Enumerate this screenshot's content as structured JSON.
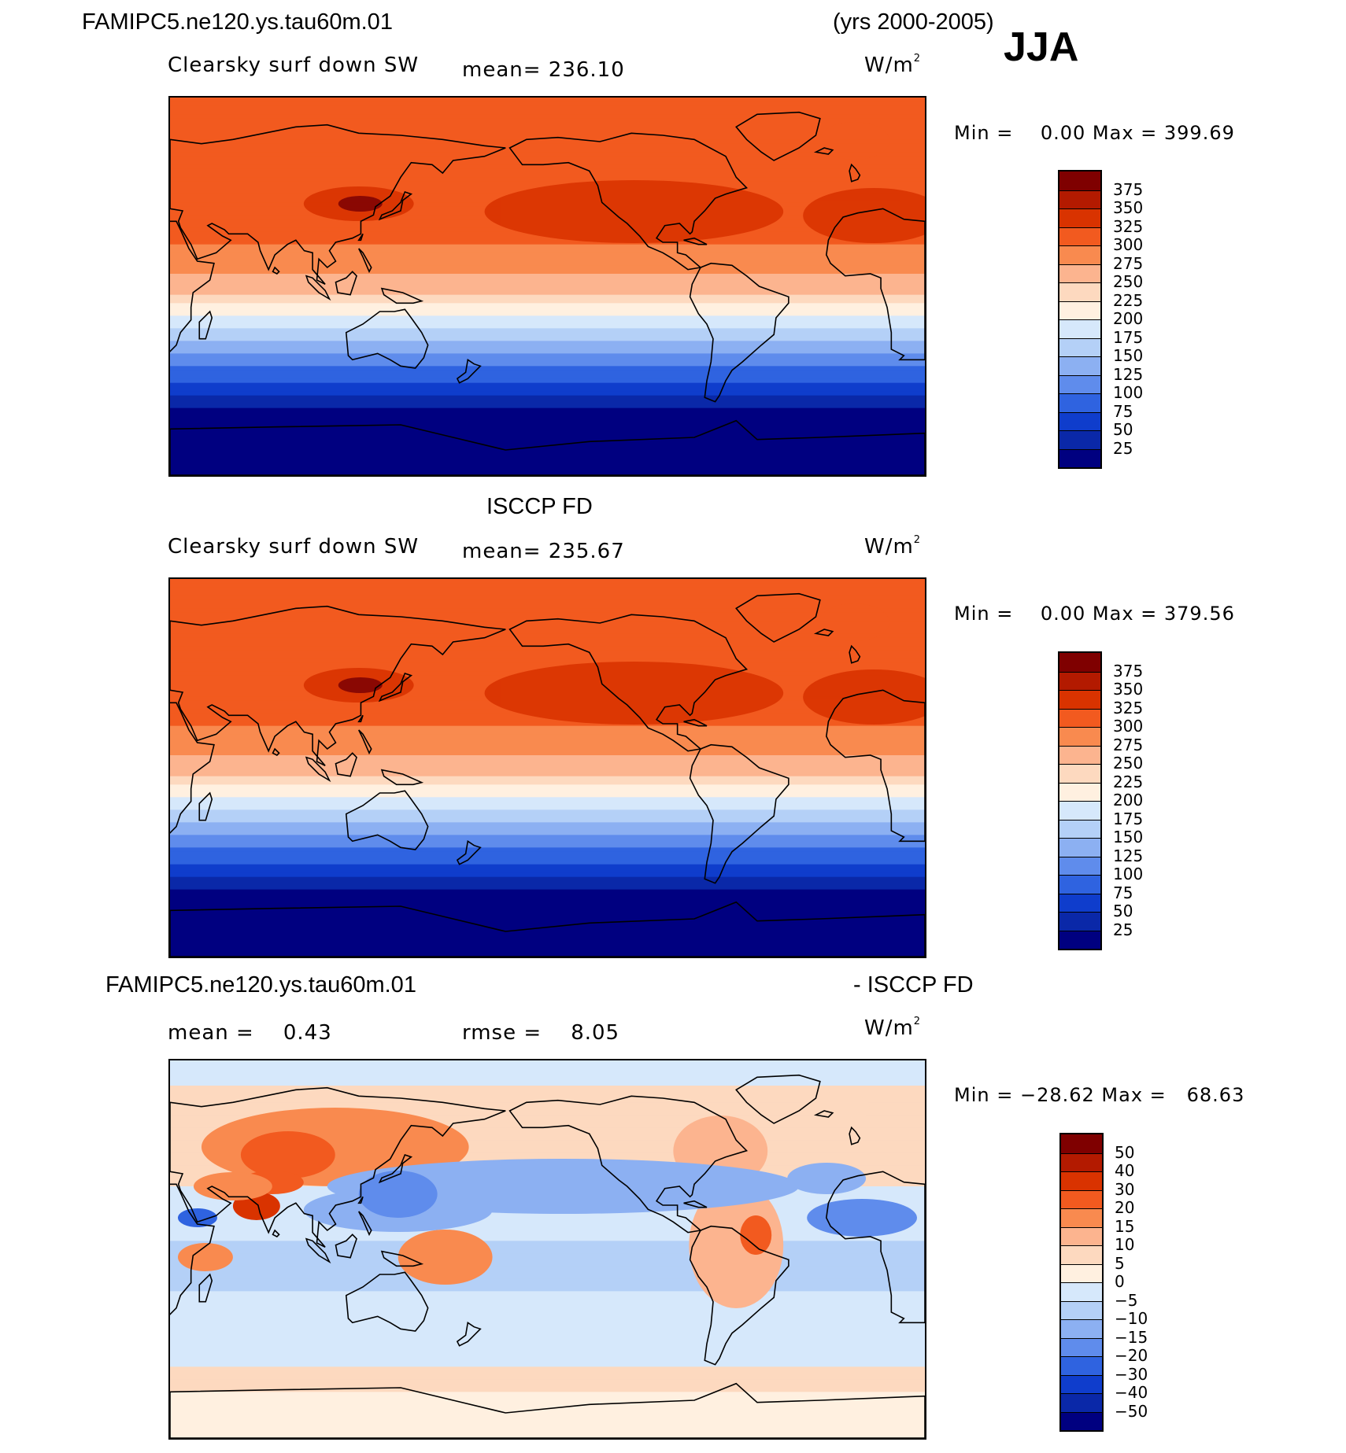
{
  "header": {
    "case_title": "FAMIPC5.ne120.ys.tau60m.01",
    "years": "(yrs 2000-2005)",
    "season": "JJA"
  },
  "panels": [
    {
      "title": "",
      "variable": "Clearsky surf down SW",
      "mean_text": "mean= 236.10",
      "units_base": "W/m",
      "units_exp": "2",
      "minmax": "Min =    0.00 Max = 399.69",
      "colorbar": {
        "labels": [
          "375",
          "350",
          "325",
          "300",
          "275",
          "250",
          "225",
          "200",
          "175",
          "150",
          "125",
          "100",
          "75",
          "50",
          "25"
        ],
        "colors": [
          "#7f0000",
          "#b31a00",
          "#d93300",
          "#f25a1f",
          "#f98a4f",
          "#fcb48f",
          "#fdd9bf",
          "#fff0e0",
          "#d6e8fb",
          "#b4d0f7",
          "#8cb0f2",
          "#5f8cec",
          "#2f63e0",
          "#0f3dcc",
          "#0a28a8",
          "#000080"
        ]
      },
      "fields": {
        "ocean_bands": "model",
        "land": "model"
      }
    },
    {
      "title": "ISCCP FD",
      "variable": "Clearsky surf down SW",
      "mean_text": "mean= 235.67",
      "units_base": "W/m",
      "units_exp": "2",
      "minmax": "Min =    0.00 Max = 379.56",
      "colorbar": {
        "labels": [
          "375",
          "350",
          "325",
          "300",
          "275",
          "250",
          "225",
          "200",
          "175",
          "150",
          "125",
          "100",
          "75",
          "50",
          "25"
        ],
        "colors": [
          "#7f0000",
          "#b31a00",
          "#d93300",
          "#f25a1f",
          "#f98a4f",
          "#fcb48f",
          "#fdd9bf",
          "#fff0e0",
          "#d6e8fb",
          "#b4d0f7",
          "#8cb0f2",
          "#5f8cec",
          "#2f63e0",
          "#0f3dcc",
          "#0a28a8",
          "#000080"
        ]
      },
      "fields": {
        "ocean_bands": "obs",
        "land": "obs"
      }
    },
    {
      "title_left": "FAMIPC5.ne120.ys.tau60m.01",
      "title_right": "- ISCCP FD",
      "mean_text": "mean =    0.43",
      "rmse_text": "rmse =    8.05",
      "units_base": "W/m",
      "units_exp": "2",
      "minmax": "Min = −28.62 Max =   68.63",
      "colorbar": {
        "labels": [
          "50",
          "40",
          "30",
          "20",
          "15",
          "10",
          "5",
          "0",
          "−5",
          "−10",
          "−15",
          "−20",
          "−30",
          "−40",
          "−50"
        ],
        "colors": [
          "#7f0000",
          "#b31a00",
          "#d93300",
          "#f25a1f",
          "#f98a4f",
          "#fcb48f",
          "#fdd9bf",
          "#fff0e0",
          "#d6e8fb",
          "#b4d0f7",
          "#8cb0f2",
          "#5f8cec",
          "#2f63e0",
          "#0f3dcc",
          "#0a28a8",
          "#000080"
        ]
      }
    }
  ]
}
